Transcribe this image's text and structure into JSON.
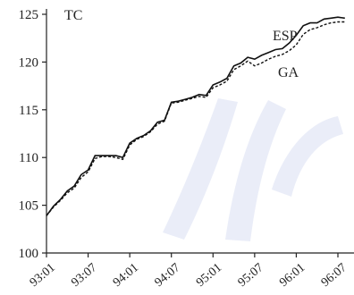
{
  "chart_data": {
    "type": "line",
    "title": "TC",
    "xlabel": "",
    "ylabel": "",
    "ylim": [
      100,
      125
    ],
    "yticks": [
      "100",
      "105",
      "110",
      "115",
      "120",
      "125"
    ],
    "xticks": [
      "93:01",
      "93:07",
      "94:01",
      "94:07",
      "95:01",
      "95:07",
      "96:01",
      "96:07"
    ],
    "grid": false,
    "x": [
      "93:01",
      "93:02",
      "93:03",
      "93:04",
      "93:05",
      "93:06",
      "93:07",
      "93:08",
      "93:09",
      "93:10",
      "93:11",
      "93:12",
      "94:01",
      "94:02",
      "94:03",
      "94:04",
      "94:05",
      "94:06",
      "94:07",
      "94:08",
      "94:09",
      "94:10",
      "94:11",
      "94:12",
      "95:01",
      "95:02",
      "95:03",
      "95:04",
      "95:05",
      "95:06",
      "95:07",
      "95:08",
      "95:09",
      "95:10",
      "95:11",
      "95:12",
      "96:01",
      "96:02",
      "96:03",
      "96:04",
      "96:05",
      "96:06",
      "96:07",
      "96:08"
    ],
    "series": [
      {
        "name": "ESP",
        "style": "solid",
        "values": [
          103.9,
          104.9,
          105.6,
          106.5,
          107.0,
          108.2,
          108.7,
          110.2,
          110.2,
          110.2,
          110.2,
          110.0,
          111.5,
          112.0,
          112.3,
          112.8,
          113.7,
          113.9,
          115.8,
          115.9,
          116.1,
          116.3,
          116.6,
          116.5,
          117.6,
          117.9,
          118.3,
          119.6,
          119.9,
          120.5,
          120.3,
          120.7,
          121.0,
          121.3,
          121.4,
          122.0,
          122.8,
          123.8,
          124.1,
          124.1,
          124.5,
          124.6,
          124.7,
          124.6
        ]
      },
      {
        "name": "GA",
        "style": "dashed",
        "values": [
          103.9,
          104.8,
          105.5,
          106.3,
          106.8,
          107.9,
          108.5,
          109.9,
          110.1,
          110.1,
          110.0,
          109.8,
          111.3,
          111.9,
          112.2,
          112.7,
          113.5,
          113.8,
          115.7,
          115.8,
          116.0,
          116.2,
          116.4,
          116.3,
          117.3,
          117.6,
          118.0,
          119.2,
          119.6,
          120.1,
          119.6,
          119.9,
          120.3,
          120.6,
          120.8,
          121.2,
          121.8,
          122.9,
          123.4,
          123.6,
          123.9,
          124.1,
          124.2,
          124.2
        ]
      }
    ],
    "labels": {
      "esp": "ESP",
      "ga": "GA"
    }
  }
}
